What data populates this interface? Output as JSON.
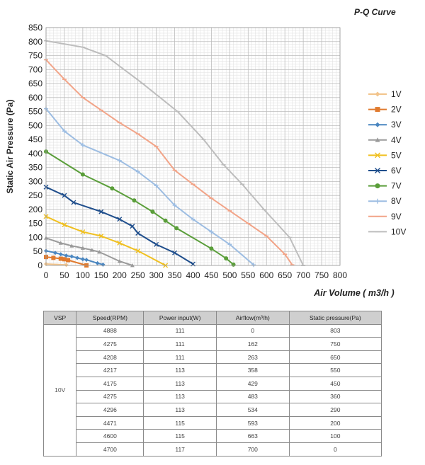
{
  "chart_data": {
    "type": "line",
    "title": "P-Q Curve",
    "xlabel": "Air Volume ( m3/h )",
    "ylabel": "Static Air Pressure (Pa)",
    "xlim": [
      0,
      800
    ],
    "ylim": [
      0,
      850
    ],
    "xticks": [
      "0",
      "50",
      "100",
      "150",
      "200",
      "250",
      "300",
      "350",
      "400",
      "450",
      "500",
      "550",
      "600",
      "650",
      "700",
      "750",
      "800"
    ],
    "yticks": [
      "0",
      "50",
      "100",
      "150",
      "200",
      "250",
      "300",
      "350",
      "400",
      "450",
      "500",
      "550",
      "600",
      "650",
      "700",
      "750",
      "800",
      "850"
    ],
    "grid": true,
    "legend_position": "right",
    "series": [
      {
        "name": "1V",
        "color": "#f2c48c",
        "marker": "diamond",
        "points": [
          [
            0,
            5
          ],
          [
            55,
            2
          ]
        ]
      },
      {
        "name": "2V",
        "color": "#e07a2e",
        "marker": "square",
        "points": [
          [
            0,
            30
          ],
          [
            20,
            27
          ],
          [
            40,
            24
          ],
          [
            50,
            22
          ],
          [
            60,
            19
          ],
          [
            110,
            0
          ]
        ]
      },
      {
        "name": "3V",
        "color": "#4a86c0",
        "marker": "diamond",
        "points": [
          [
            0,
            52
          ],
          [
            25,
            45
          ],
          [
            40,
            40
          ],
          [
            55,
            35
          ],
          [
            70,
            32
          ],
          [
            85,
            27
          ],
          [
            100,
            22
          ],
          [
            110,
            20
          ],
          [
            140,
            8
          ],
          [
            155,
            3
          ]
        ]
      },
      {
        "name": "4V",
        "color": "#9a9a9a",
        "marker": "triangle",
        "points": [
          [
            0,
            98
          ],
          [
            40,
            80
          ],
          [
            70,
            70
          ],
          [
            100,
            62
          ],
          [
            125,
            55
          ],
          [
            145,
            48
          ],
          [
            200,
            15
          ],
          [
            235,
            0
          ]
        ]
      },
      {
        "name": "5V",
        "color": "#f0c020",
        "marker": "x",
        "points": [
          [
            0,
            175
          ],
          [
            50,
            145
          ],
          [
            100,
            120
          ],
          [
            150,
            105
          ],
          [
            200,
            80
          ],
          [
            250,
            52
          ],
          [
            325,
            0
          ]
        ]
      },
      {
        "name": "6V",
        "color": "#1f4e8c",
        "marker": "x",
        "points": [
          [
            0,
            280
          ],
          [
            50,
            250
          ],
          [
            75,
            225
          ],
          [
            150,
            192
          ],
          [
            200,
            165
          ],
          [
            235,
            140
          ],
          [
            250,
            115
          ],
          [
            300,
            75
          ],
          [
            350,
            45
          ],
          [
            400,
            5
          ]
        ]
      },
      {
        "name": "7V",
        "color": "#5a9e3a",
        "marker": "circle",
        "points": [
          [
            0,
            407
          ],
          [
            100,
            325
          ],
          [
            180,
            275
          ],
          [
            240,
            232
          ],
          [
            290,
            192
          ],
          [
            325,
            160
          ],
          [
            355,
            133
          ],
          [
            450,
            60
          ],
          [
            490,
            25
          ],
          [
            510,
            3
          ]
        ]
      },
      {
        "name": "8V",
        "color": "#9dbde2",
        "marker": "plus",
        "points": [
          [
            0,
            560
          ],
          [
            50,
            480
          ],
          [
            100,
            430
          ],
          [
            200,
            375
          ],
          [
            250,
            335
          ],
          [
            300,
            285
          ],
          [
            350,
            215
          ],
          [
            400,
            165
          ],
          [
            450,
            120
          ],
          [
            500,
            75
          ],
          [
            565,
            2
          ]
        ]
      },
      {
        "name": "9V",
        "color": "#f2a488",
        "marker": "dash",
        "points": [
          [
            0,
            735
          ],
          [
            50,
            665
          ],
          [
            100,
            600
          ],
          [
            150,
            555
          ],
          [
            200,
            510
          ],
          [
            250,
            470
          ],
          [
            300,
            425
          ],
          [
            350,
            340
          ],
          [
            400,
            290
          ],
          [
            450,
            240
          ],
          [
            500,
            195
          ],
          [
            550,
            150
          ],
          [
            600,
            105
          ],
          [
            650,
            40
          ],
          [
            670,
            2
          ]
        ]
      },
      {
        "name": "10V",
        "color": "#bdbdbd",
        "marker": "dash",
        "points": [
          [
            0,
            803
          ],
          [
            100,
            780
          ],
          [
            162,
            750
          ],
          [
            263,
            650
          ],
          [
            358,
            550
          ],
          [
            429,
            450
          ],
          [
            483,
            360
          ],
          [
            534,
            290
          ],
          [
            593,
            200
          ],
          [
            663,
            100
          ],
          [
            700,
            0
          ]
        ]
      }
    ]
  },
  "table": {
    "headers": [
      "VSP",
      "Speed(RPM)",
      "Power input(W)",
      "Airflow(m³/h)",
      "Static pressure(Pa)"
    ],
    "vsp": "10V",
    "rows": [
      [
        "4888",
        "111",
        "0",
        "803"
      ],
      [
        "4275",
        "111",
        "162",
        "750"
      ],
      [
        "4208",
        "111",
        "263",
        "650"
      ],
      [
        "4217",
        "113",
        "358",
        "550"
      ],
      [
        "4175",
        "113",
        "429",
        "450"
      ],
      [
        "4275",
        "113",
        "483",
        "360"
      ],
      [
        "4296",
        "113",
        "534",
        "290"
      ],
      [
        "4471",
        "115",
        "593",
        "200"
      ],
      [
        "4600",
        "115",
        "663",
        "100"
      ],
      [
        "4700",
        "117",
        "700",
        "0"
      ]
    ]
  }
}
